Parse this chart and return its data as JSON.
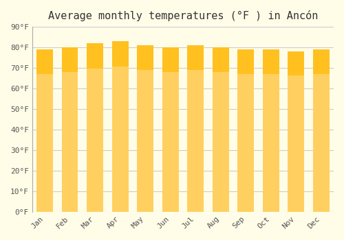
{
  "title": "Average monthly temperatures (°F ) in Ancón",
  "months": [
    "Jan",
    "Feb",
    "Mar",
    "Apr",
    "May",
    "Jun",
    "Jul",
    "Aug",
    "Sep",
    "Oct",
    "Nov",
    "Dec"
  ],
  "values": [
    79,
    80,
    82,
    83,
    81,
    80,
    81,
    80,
    79,
    79,
    78,
    79
  ],
  "bar_color_top": "#FFC020",
  "bar_color_bottom": "#FFD060",
  "background_color": "#FFFDE8",
  "grid_color": "#CCCCCC",
  "ylim": [
    0,
    90
  ],
  "yticks": [
    0,
    10,
    20,
    30,
    40,
    50,
    60,
    70,
    80,
    90
  ],
  "ytick_labels": [
    "0°F",
    "10°F",
    "20°F",
    "30°F",
    "40°F",
    "50°F",
    "60°F",
    "70°F",
    "80°F",
    "90°F"
  ],
  "title_fontsize": 11,
  "tick_fontsize": 8,
  "title_font": "monospace"
}
